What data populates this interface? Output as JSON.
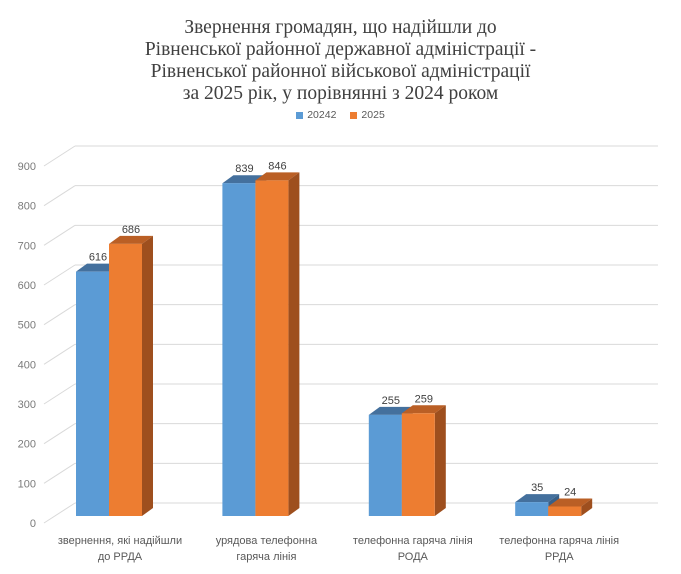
{
  "title": {
    "lines": [
      "Звернення громадян, що надійшли до",
      "Рівненської районної державної адміністрації -",
      "Рівненської районної військової адміністрації",
      "за 2025 рік, у порівнянні  з 2024 роком"
    ]
  },
  "legend": {
    "items": [
      {
        "label": "20242",
        "color": "#5B9BD5"
      },
      {
        "label": "2025",
        "color": "#ED7D31"
      }
    ]
  },
  "y_axis": {
    "ticks": [
      "0",
      "100",
      "200",
      "300",
      "400",
      "500",
      "600",
      "700",
      "800",
      "900"
    ]
  },
  "chart_data": {
    "type": "bar",
    "variant": "3d-clustered-column",
    "title": "Звернення громадян, що надійшли до Рівненської районної державної адміністрації - Рівненської районної військової адміністрації за 2025 рік, у порівнянні  з 2024 роком",
    "categories": [
      "звернення, які надійшли до РРДА",
      "урядова телефонна гаряча лінія",
      "телефонна гаряча лінія РОДА",
      "телефонна гаряча лінія РРДА"
    ],
    "category_label_lines": [
      [
        "звернення, які надійшли",
        "до РРДА"
      ],
      [
        "урядова телефонна",
        "гаряча лінія"
      ],
      [
        "телефонна гаряча лінія",
        "РОДА"
      ],
      [
        "телефонна гаряча лінія",
        "РРДА"
      ]
    ],
    "series": [
      {
        "name": "20242",
        "values": [
          616,
          839,
          255,
          35
        ],
        "color": "#5B9BD5",
        "top_color": "#44709D",
        "side_color": "#386089"
      },
      {
        "name": "2025",
        "values": [
          686,
          846,
          259,
          24
        ],
        "color": "#ED7D31",
        "top_color": "#BA5F25",
        "side_color": "#9E4F1E"
      }
    ],
    "ylim": [
      0,
      900
    ],
    "ytick_step": 100,
    "grid": true,
    "legend_position": "top",
    "data_labels": true
  },
  "colors": {
    "gridline": "#D9D9D9",
    "title_text": "#404040",
    "value_label_text": "#404040",
    "y_axis_text": "#7A7A7A",
    "category_text": "#595959",
    "legend_text": "#595959",
    "background": "#FFFFFF"
  }
}
